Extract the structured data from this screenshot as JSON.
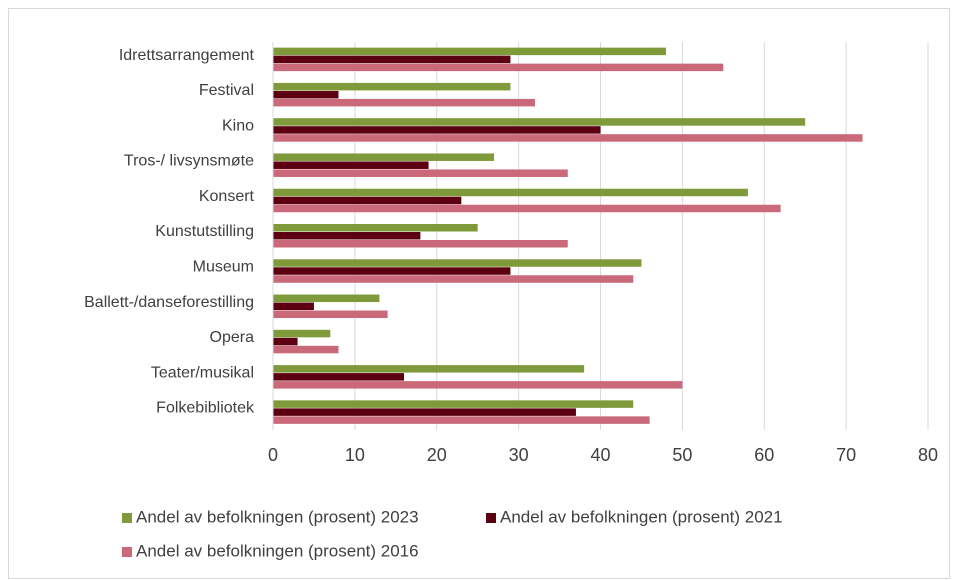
{
  "chart_data": {
    "type": "bar",
    "orientation": "horizontal",
    "categories": [
      "Idrettsarrangement",
      "Festival",
      "Kino",
      "Tros-/ livsynsmøte",
      "Konsert",
      "Kunstutstilling",
      "Museum",
      "Ballett-/danseforestilling",
      "Opera",
      "Teater/musikal",
      "Folkebibliotek"
    ],
    "series": [
      {
        "name": "Andel av befolkningen (prosent) 2023",
        "color": "#7f9a3a",
        "values": [
          48,
          29,
          65,
          27,
          58,
          25,
          45,
          13,
          7,
          38,
          44
        ]
      },
      {
        "name": "Andel av befolkningen (prosent) 2021",
        "color": "#5c0011",
        "values": [
          29,
          8,
          40,
          19,
          23,
          18,
          29,
          5,
          3,
          16,
          37
        ]
      },
      {
        "name": "Andel av befolkningen (prosent) 2016",
        "color": "#c9697a",
        "values": [
          55,
          32,
          72,
          36,
          62,
          36,
          44,
          14,
          8,
          50,
          46
        ]
      }
    ],
    "xlim": [
      0,
      80
    ],
    "xticks": [
      0,
      10,
      20,
      30,
      40,
      50,
      60,
      70,
      80
    ],
    "grid": true
  }
}
